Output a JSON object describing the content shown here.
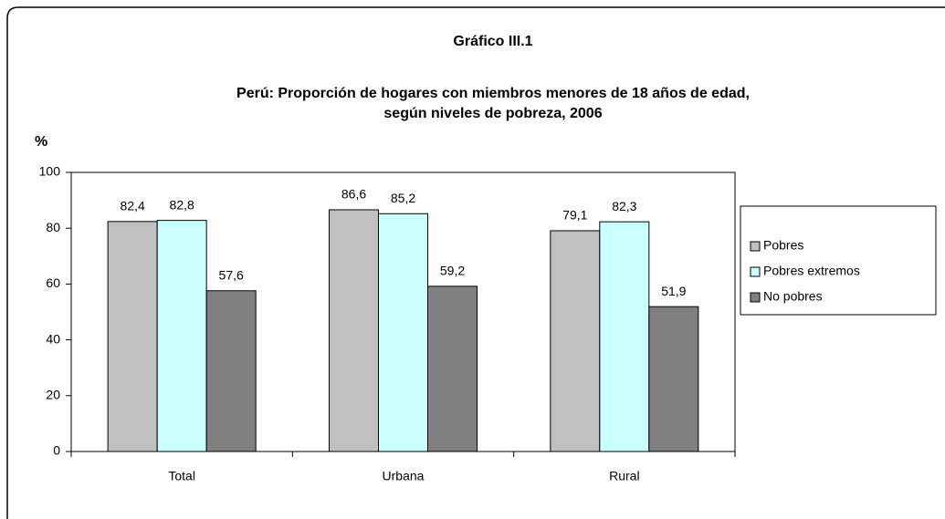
{
  "chart_data": {
    "type": "bar",
    "title": "Gráfico  III.1",
    "subtitle": [
      "Perú: Proporción de hogares con miembros menores de 18 años de edad,",
      "según niveles de pobreza, 2006"
    ],
    "y_label": "%",
    "categories": [
      "Total",
      "Urbana",
      "Rural"
    ],
    "series": [
      {
        "name": "Pobres",
        "color": "#c0c0c0",
        "values": [
          82.4,
          86.6,
          79.1
        ],
        "value_labels": [
          "82,4",
          "86,6",
          "79,1"
        ]
      },
      {
        "name": "Pobres extremos",
        "color": "#ccffff",
        "values": [
          82.8,
          85.2,
          82.3
        ],
        "value_labels": [
          "82,8",
          "85,2",
          "82,3"
        ]
      },
      {
        "name": "No pobres",
        "color": "#808080",
        "values": [
          57.6,
          59.2,
          51.9
        ],
        "value_labels": [
          "57,6",
          "59,2",
          "51,9"
        ]
      }
    ],
    "ylim": [
      0,
      100
    ],
    "yticks": [
      0,
      20,
      40,
      60,
      80,
      100
    ],
    "grid": false,
    "legend": "right"
  }
}
